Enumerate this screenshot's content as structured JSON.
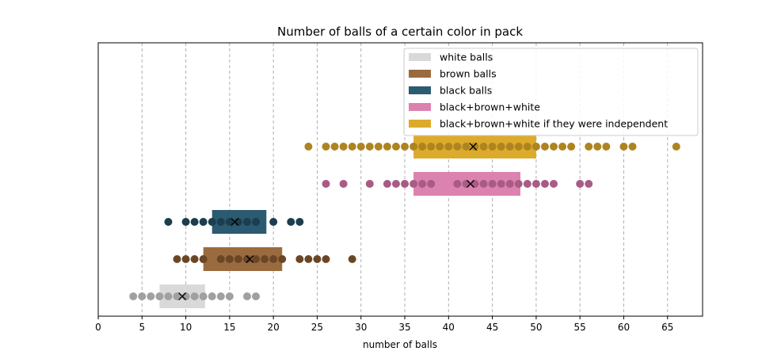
{
  "chart_data": {
    "type": "scatter",
    "title": "Number of balls of a certain color in pack",
    "xlabel": "number of balls",
    "ylabel": "",
    "xlim": [
      0,
      69
    ],
    "xticks": [
      0,
      5,
      10,
      15,
      20,
      25,
      30,
      35,
      40,
      45,
      50,
      55,
      60,
      65
    ],
    "grid": "vertical dashed",
    "legend_position": "top-right",
    "series": [
      {
        "name": "white balls",
        "box_color": "#d9d9d9",
        "point_color": "#a0a0a0",
        "box_range": [
          7,
          12.2
        ],
        "mean": 9.6,
        "points": [
          4,
          5,
          6,
          7,
          8,
          9,
          10,
          11,
          12,
          13,
          14,
          15,
          17,
          18
        ]
      },
      {
        "name": "brown balls",
        "box_color": "#9a6b3e",
        "point_color": "#6b4626",
        "box_range": [
          12,
          21
        ],
        "mean": 17.3,
        "points": [
          9,
          10,
          11,
          12,
          14,
          15,
          16,
          17,
          18,
          19,
          20,
          21,
          23,
          24,
          25,
          26,
          29
        ]
      },
      {
        "name": "black balls",
        "box_color": "#2c5a70",
        "point_color": "#1c3d4e",
        "box_range": [
          13,
          19.2
        ],
        "mean": 15.6,
        "points": [
          8,
          10,
          11,
          12,
          13,
          14,
          15,
          16,
          17,
          18,
          20,
          22,
          23
        ]
      },
      {
        "name": "black+brown+white",
        "box_color": "#dc82b0",
        "point_color": "#a85c85",
        "box_range": [
          36,
          48.2
        ],
        "mean": 42.5,
        "points": [
          26,
          28,
          31,
          33,
          34,
          35,
          36,
          37,
          38,
          41,
          42,
          43,
          44,
          45,
          46,
          47,
          48,
          49,
          50,
          51,
          52,
          55,
          56
        ]
      },
      {
        "name": "black+brown+white if they were independent",
        "box_color": "#dcab2c",
        "point_color": "#ae8420",
        "box_range": [
          36,
          50
        ],
        "mean": 42.8,
        "points": [
          24,
          26,
          27,
          28,
          29,
          30,
          31,
          32,
          33,
          34,
          35,
          36,
          37,
          38,
          39,
          40,
          41,
          42,
          43,
          44,
          45,
          46,
          47,
          48,
          49,
          50,
          51,
          52,
          53,
          54,
          56,
          57,
          58,
          60,
          61,
          66
        ]
      }
    ]
  }
}
